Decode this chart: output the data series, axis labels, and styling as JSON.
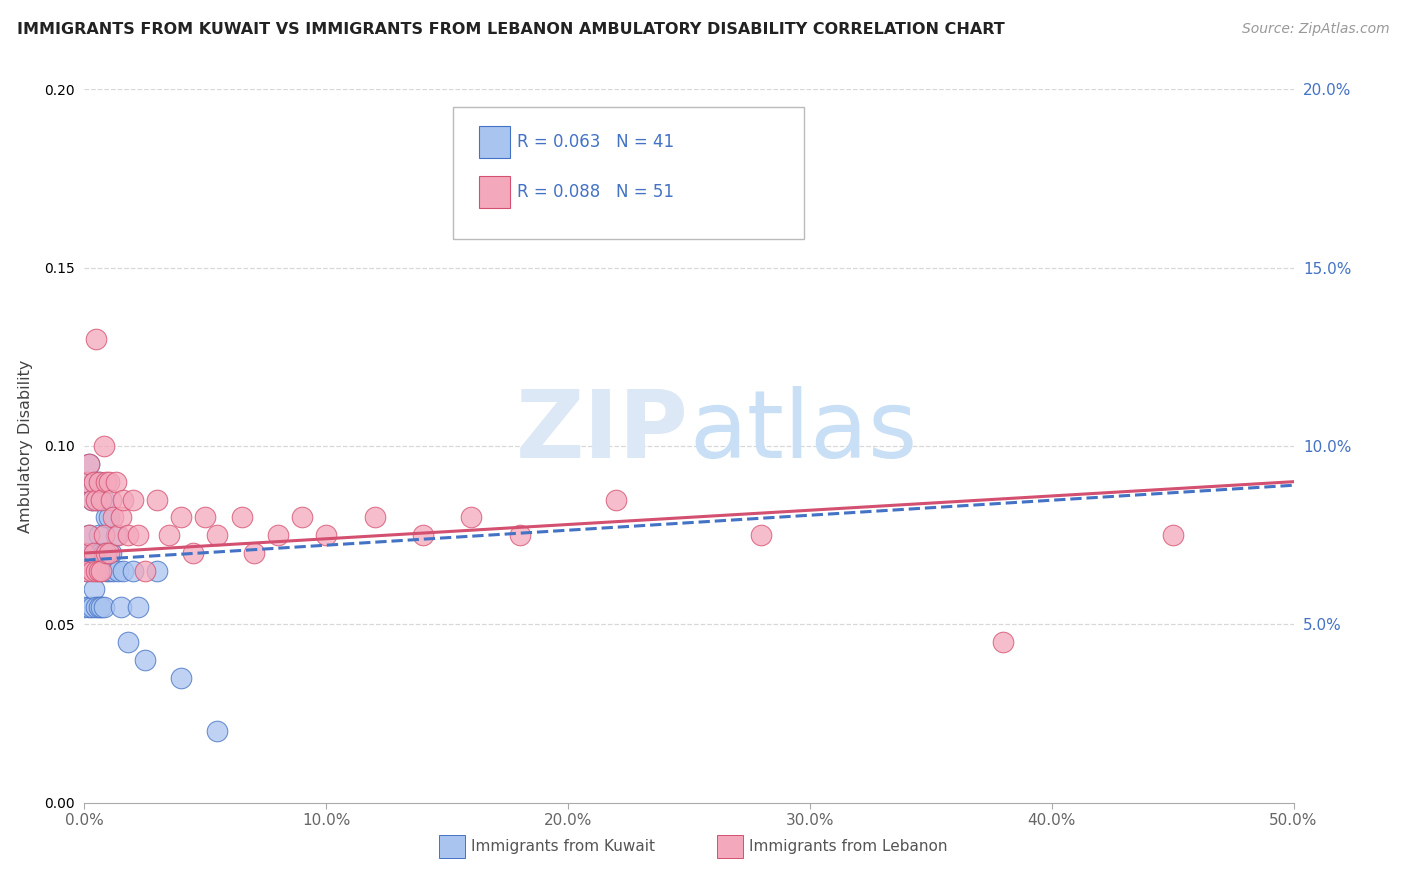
{
  "title": "IMMIGRANTS FROM KUWAIT VS IMMIGRANTS FROM LEBANON AMBULATORY DISABILITY CORRELATION CHART",
  "source": "Source: ZipAtlas.com",
  "ylabel": "Ambulatory Disability",
  "xlim": [
    0,
    0.5
  ],
  "ylim": [
    0,
    0.2
  ],
  "xticks": [
    0.0,
    0.1,
    0.2,
    0.3,
    0.4,
    0.5
  ],
  "yticks": [
    0.0,
    0.05,
    0.1,
    0.15,
    0.2
  ],
  "kuwait_R": 0.063,
  "kuwait_N": 41,
  "lebanon_R": 0.088,
  "lebanon_N": 51,
  "kuwait_color": "#aac4f0",
  "lebanon_color": "#f4a8bc",
  "kuwait_line_color": "#4472c4",
  "lebanon_line_color": "#d45070",
  "background_color": "#ffffff",
  "grid_color": "#d8d8d8",
  "watermark_color": "#dce8f5",
  "kuwait_scatter_x": [
    0.0,
    0.0,
    0.001,
    0.001,
    0.002,
    0.002,
    0.002,
    0.003,
    0.003,
    0.003,
    0.004,
    0.004,
    0.005,
    0.005,
    0.005,
    0.006,
    0.006,
    0.006,
    0.007,
    0.007,
    0.007,
    0.008,
    0.008,
    0.008,
    0.009,
    0.009,
    0.01,
    0.01,
    0.011,
    0.012,
    0.013,
    0.014,
    0.015,
    0.016,
    0.018,
    0.02,
    0.022,
    0.025,
    0.03,
    0.04,
    0.055
  ],
  "kuwait_scatter_y": [
    0.07,
    0.055,
    0.09,
    0.065,
    0.095,
    0.075,
    0.055,
    0.085,
    0.07,
    0.055,
    0.09,
    0.06,
    0.085,
    0.07,
    0.055,
    0.09,
    0.075,
    0.055,
    0.085,
    0.07,
    0.055,
    0.085,
    0.07,
    0.055,
    0.08,
    0.065,
    0.08,
    0.065,
    0.07,
    0.065,
    0.075,
    0.065,
    0.055,
    0.065,
    0.045,
    0.065,
    0.055,
    0.04,
    0.065,
    0.035,
    0.02
  ],
  "lebanon_scatter_x": [
    0.0,
    0.001,
    0.001,
    0.002,
    0.002,
    0.003,
    0.003,
    0.004,
    0.004,
    0.005,
    0.005,
    0.005,
    0.006,
    0.006,
    0.007,
    0.007,
    0.008,
    0.008,
    0.009,
    0.009,
    0.01,
    0.01,
    0.011,
    0.012,
    0.013,
    0.014,
    0.015,
    0.016,
    0.018,
    0.02,
    0.022,
    0.025,
    0.03,
    0.035,
    0.04,
    0.045,
    0.05,
    0.055,
    0.065,
    0.07,
    0.08,
    0.09,
    0.1,
    0.12,
    0.14,
    0.16,
    0.18,
    0.22,
    0.28,
    0.38,
    0.45
  ],
  "lebanon_scatter_y": [
    0.07,
    0.09,
    0.065,
    0.095,
    0.075,
    0.085,
    0.065,
    0.09,
    0.07,
    0.13,
    0.085,
    0.065,
    0.09,
    0.065,
    0.085,
    0.065,
    0.1,
    0.075,
    0.09,
    0.07,
    0.09,
    0.07,
    0.085,
    0.08,
    0.09,
    0.075,
    0.08,
    0.085,
    0.075,
    0.085,
    0.075,
    0.065,
    0.085,
    0.075,
    0.08,
    0.07,
    0.08,
    0.075,
    0.08,
    0.07,
    0.075,
    0.08,
    0.075,
    0.08,
    0.075,
    0.08,
    0.075,
    0.085,
    0.075,
    0.045,
    0.075
  ],
  "kuwait_trend": [
    0.068,
    0.089
  ],
  "lebanon_trend": [
    0.07,
    0.09
  ],
  "trend_x_start": 0.0,
  "trend_x_end": 0.5
}
